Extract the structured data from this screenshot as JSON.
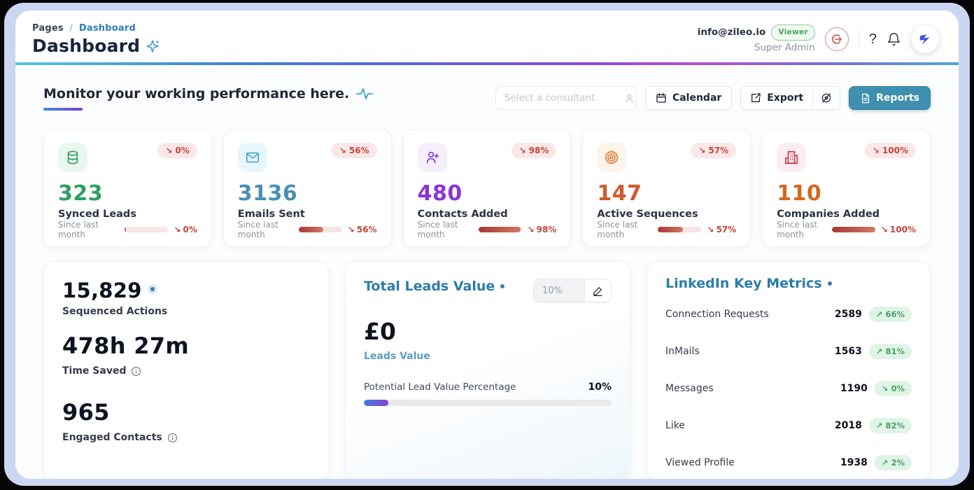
{
  "header": {
    "breadcrumb": {
      "root": "Pages",
      "separator": "/",
      "current": "Dashboard"
    },
    "title": "Dashboard",
    "user": {
      "email": "info@zileo.io",
      "role_badge": "Viewer",
      "role": "Super Admin"
    },
    "help_label": "?"
  },
  "toolbar": {
    "heading": "Monitor your working performance here.",
    "consultant_placeholder": "Select a consultant",
    "calendar_label": "Calendar",
    "export_label": "Export",
    "reports_label": "Reports"
  },
  "stat_cards": [
    {
      "icon": "database-icon",
      "value": "323",
      "label": "Synced Leads",
      "since_label": "Since last month",
      "badge_arrow": "↘",
      "change": "0%",
      "progress": 3,
      "accent": "#2f9e62"
    },
    {
      "icon": "mail-icon",
      "value": "3136",
      "label": "Emails Sent",
      "since_label": "Since last month",
      "badge_arrow": "↘",
      "change": "56%",
      "progress": 56,
      "accent": "#4a8fb5"
    },
    {
      "icon": "person-add-icon",
      "value": "480",
      "label": "Contacts Added",
      "since_label": "Since last month",
      "badge_arrow": "↘",
      "change": "98%",
      "progress": 98,
      "accent": "#8b33d9"
    },
    {
      "icon": "target-icon",
      "value": "147",
      "label": "Active Sequences",
      "since_label": "Since last month",
      "badge_arrow": "↘",
      "change": "57%",
      "progress": 57,
      "accent": "#cc5d2b"
    },
    {
      "icon": "building-icon",
      "value": "110",
      "label": "Companies Added",
      "since_label": "Since last month",
      "badge_arrow": "↘",
      "change": "100%",
      "progress": 100,
      "accent": "#d2691e"
    }
  ],
  "summary_panel": {
    "sequenced": {
      "value": "15,829",
      "label": "Sequenced Actions"
    },
    "time_saved": {
      "value": "478h 27m",
      "label": "Time Saved"
    },
    "engaged": {
      "value": "965",
      "label": "Engaged Contacts"
    }
  },
  "leads_panel": {
    "title": "Total Leads Value",
    "pct_input_value": "10%",
    "amount": "£0",
    "amount_label": "Leads Value",
    "progress_label": "Potential Lead Value Percentage",
    "progress_value": "10%",
    "progress_pct": 10
  },
  "linkedin_panel": {
    "title": "LinkedIn Key Metrics",
    "rows": [
      {
        "label": "Connection Requests",
        "value": "2589",
        "arrow": "↗",
        "change": "66%"
      },
      {
        "label": "InMails",
        "value": "1563",
        "arrow": "↗",
        "change": "81%"
      },
      {
        "label": "Messages",
        "value": "1190",
        "arrow": "↘",
        "change": "0%"
      },
      {
        "label": "Like",
        "value": "2018",
        "arrow": "↗",
        "change": "82%"
      },
      {
        "label": "Viewed Profile",
        "value": "1938",
        "arrow": "↗",
        "change": "2%"
      }
    ]
  },
  "colors": {
    "frame": "#ccd6f3",
    "accent_teal_button": "#3f8fae",
    "badge_down_bg": "#fbe7e7",
    "badge_down_text": "#c4453a",
    "badge_up_bg": "#dff4e6",
    "badge_up_text": "#48a169",
    "title_blue": "#2d7cab",
    "breadcrumb_link": "#2d7fc1",
    "divider_gradient": [
      "#56c6da",
      "#3f86cf",
      "#8a49d6",
      "#b44ecf",
      "#4fa6d5"
    ],
    "leads_fill_gradient": [
      "#3d7fd6",
      "#8b3fd9"
    ]
  }
}
